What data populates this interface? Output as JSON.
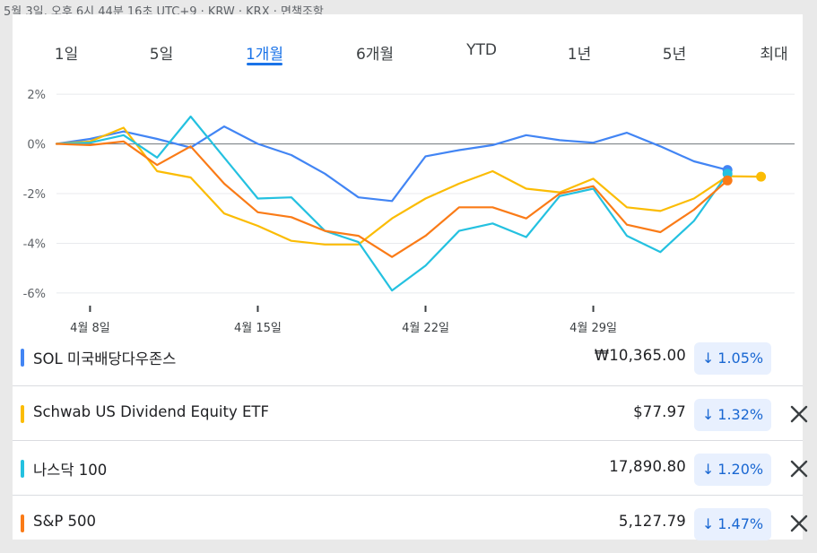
{
  "header": {
    "timestamp": "5월 3일, 오후 6시 44분 16초 UTC+9 · KRW · KRX · 면책조항"
  },
  "tabs": [
    {
      "label": "1일",
      "active": false
    },
    {
      "label": "5일",
      "active": false
    },
    {
      "label": "1개월",
      "active": true
    },
    {
      "label": "6개월",
      "active": false
    },
    {
      "label": "YTD",
      "active": false
    },
    {
      "label": "1년",
      "active": false
    },
    {
      "label": "5년",
      "active": false
    },
    {
      "label": "최대",
      "active": false
    }
  ],
  "chart_data": {
    "type": "line",
    "ylim": [
      -6.4,
      2.4
    ],
    "yticks": [
      2,
      0,
      -2,
      -4,
      -6
    ],
    "ytick_labels": [
      "2%",
      "0%",
      "-2%",
      "-4%",
      "-6%"
    ],
    "xlim": [
      0,
      22
    ],
    "xticks": [
      1,
      6,
      11,
      16
    ],
    "xtick_labels": [
      "4월 8일",
      "4월 15일",
      "4월 22일",
      "4월 29일"
    ],
    "baseline": 0,
    "grid": true,
    "series": [
      {
        "name": "SOL 미국배당다우존스",
        "color": "#4285f4",
        "x": [
          0,
          1,
          2,
          3,
          4,
          5,
          6,
          7,
          8,
          9,
          10,
          11,
          12,
          13,
          14,
          15,
          16,
          17,
          18,
          19,
          20
        ],
        "values": [
          0,
          0.2,
          0.5,
          0.2,
          -0.15,
          0.7,
          0,
          -0.45,
          -1.2,
          -2.15,
          -2.3,
          -0.5,
          -0.25,
          -0.05,
          0.35,
          0.15,
          0.05,
          0.45,
          -0.1,
          -0.7,
          -1.05
        ]
      },
      {
        "name": "Schwab US Dividend Equity ETF",
        "color": "#fbbc04",
        "x": [
          0,
          1,
          2,
          3,
          4,
          5,
          6,
          7,
          8,
          9,
          10,
          11,
          12,
          13,
          14,
          15,
          16,
          17,
          18,
          19,
          20,
          21
        ],
        "values": [
          0,
          0.1,
          0.65,
          -1.1,
          -1.35,
          -2.8,
          -3.3,
          -3.9,
          -4.05,
          -4.05,
          -3,
          -2.2,
          -1.6,
          -1.1,
          -1.8,
          -1.95,
          -1.4,
          -2.55,
          -2.7,
          -2.2,
          -1.3,
          -1.32
        ]
      },
      {
        "name": "나스닥 100",
        "color": "#24c1e0",
        "x": [
          0,
          1,
          2,
          3,
          4,
          5,
          6,
          7,
          8,
          9,
          10,
          11,
          12,
          13,
          14,
          15,
          16,
          17,
          18,
          19,
          20
        ],
        "values": [
          0,
          0.05,
          0.35,
          -0.55,
          1.1,
          -0.55,
          -2.2,
          -2.15,
          -3.5,
          -3.95,
          -5.9,
          -4.9,
          -3.5,
          -3.2,
          -3.75,
          -2.1,
          -1.8,
          -3.7,
          -4.35,
          -3.1,
          -1.2
        ]
      },
      {
        "name": "S&P 500",
        "color": "#fa7b17",
        "x": [
          0,
          1,
          2,
          3,
          4,
          5,
          6,
          7,
          8,
          9,
          10,
          11,
          12,
          13,
          14,
          15,
          16,
          17,
          18,
          19,
          20
        ],
        "values": [
          0,
          -0.05,
          0.1,
          -0.85,
          -0.1,
          -1.6,
          -2.75,
          -2.95,
          -3.5,
          -3.7,
          -4.55,
          -3.7,
          -2.55,
          -2.55,
          -3,
          -2,
          -1.7,
          -3.25,
          -3.55,
          -2.65,
          -1.47
        ]
      }
    ]
  },
  "comparisons": [
    {
      "name": "SOL 미국배당다우존스",
      "color": "#4285f4",
      "price": "₩10,365.00",
      "change": "1.05%",
      "removable": false
    },
    {
      "name": "Schwab US Dividend Equity ETF",
      "color": "#fbbc04",
      "price": "$77.97",
      "change": "1.32%",
      "removable": true
    },
    {
      "name": "나스닥 100",
      "color": "#24c1e0",
      "price": "17,890.80",
      "change": "1.20%",
      "removable": true
    },
    {
      "name": "S&P 500",
      "color": "#fa7b17",
      "price": "5,127.79",
      "change": "1.47%",
      "removable": true
    }
  ],
  "icons": {
    "change": "arrow-down-icon",
    "remove": "close-icon"
  }
}
